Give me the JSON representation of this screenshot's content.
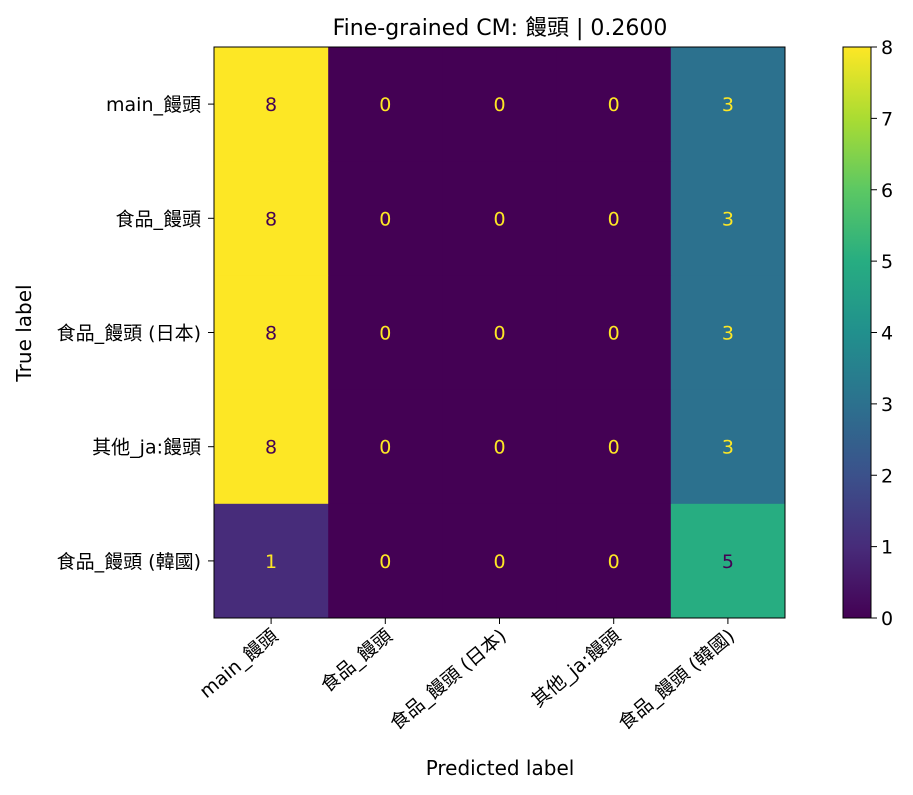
{
  "chart_data": {
    "type": "heatmap",
    "title": "Fine-grained CM: 饅頭 | 0.2600",
    "xlabel": "Predicted label",
    "ylabel": "True label",
    "x_categories": [
      "main_饅頭",
      "食品_饅頭",
      "食品_饅頭 (日本)",
      "其他_ja:饅頭",
      "食品_饅頭 (韓國)"
    ],
    "y_categories": [
      "main_饅頭",
      "食品_饅頭",
      "食品_饅頭 (日本)",
      "其他_ja:饅頭",
      "食品_饅頭 (韓國)"
    ],
    "matrix": [
      [
        8,
        0,
        0,
        0,
        3
      ],
      [
        8,
        0,
        0,
        0,
        3
      ],
      [
        8,
        0,
        0,
        0,
        3
      ],
      [
        8,
        0,
        0,
        0,
        3
      ],
      [
        1,
        0,
        0,
        0,
        5
      ]
    ],
    "colormap": "viridis",
    "colorbar": {
      "range": [
        0,
        8
      ],
      "ticks": [
        0,
        1,
        2,
        3,
        4,
        5,
        6,
        7,
        8
      ]
    },
    "grid": false,
    "legend": "colorbar-right"
  }
}
